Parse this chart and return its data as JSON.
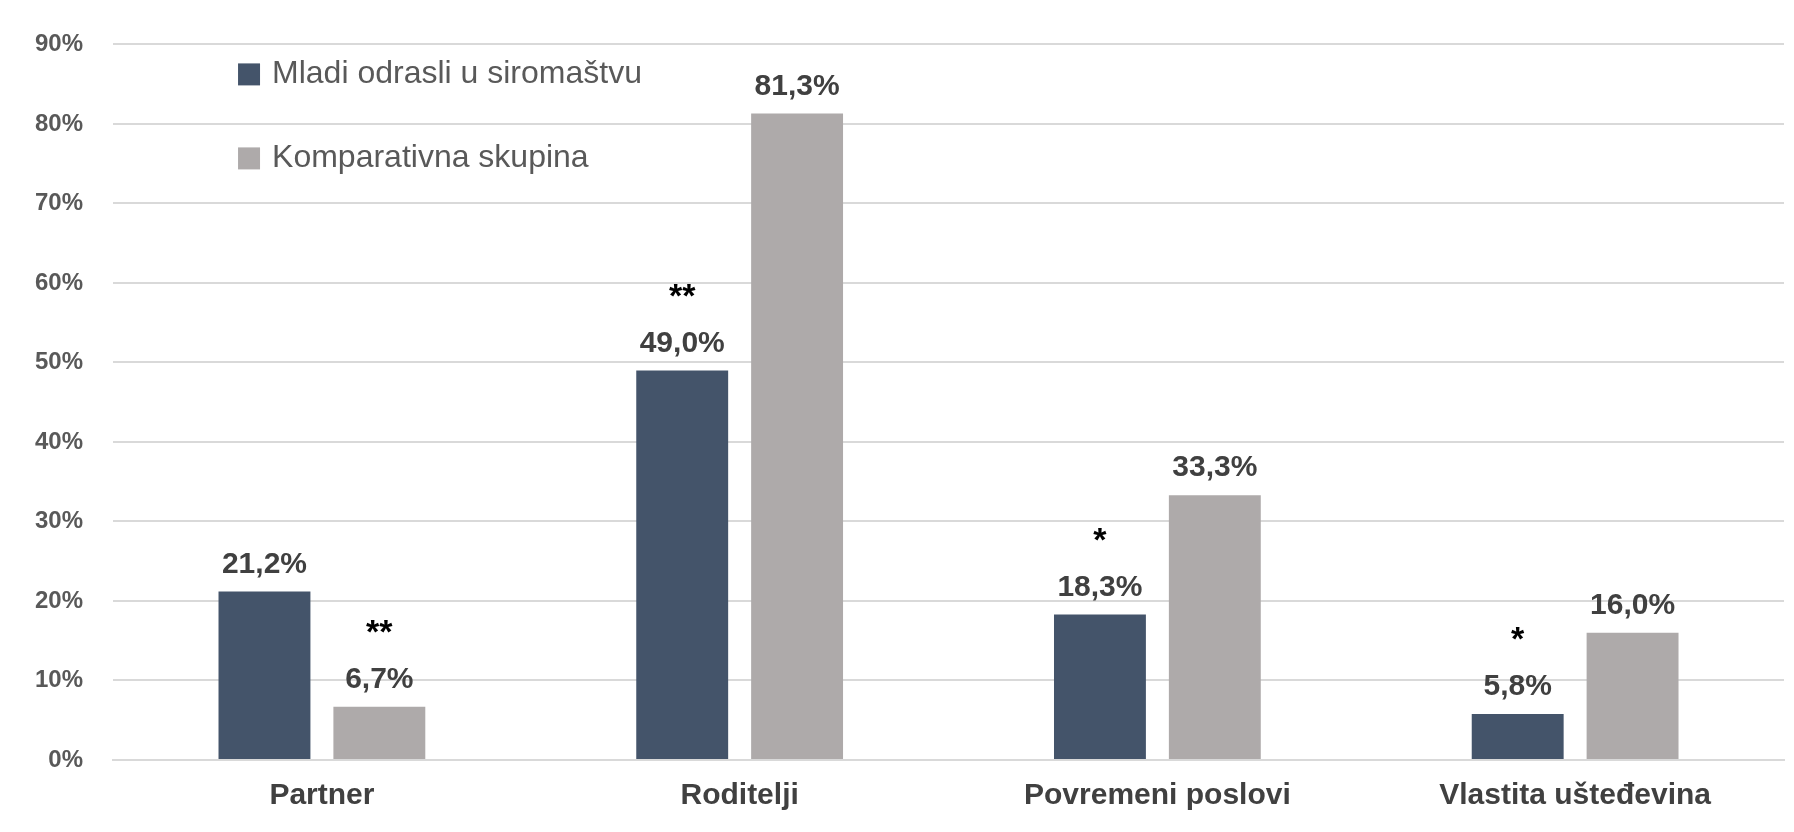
{
  "chart_data": {
    "type": "bar",
    "categories": [
      "Partner",
      "Roditelji",
      "Povremeni poslovi",
      "Vlastita ušteđevina"
    ],
    "series": [
      {
        "name": "Mladi odrasli u siromaštvu",
        "color": "#44546a",
        "values": [
          21.2,
          49.0,
          18.3,
          5.8
        ],
        "value_labels": [
          "21,2%",
          "49,0%",
          "18,3%",
          "5,8%"
        ]
      },
      {
        "name": "Komparativna skupina",
        "color": "#aeaaaa",
        "values": [
          6.7,
          81.3,
          33.3,
          16.0
        ],
        "value_labels": [
          "6,7%",
          "81,3%",
          "33,3%",
          "16,0%"
        ]
      }
    ],
    "ylim": [
      0,
      90
    ],
    "yticks": [
      {
        "value": 0,
        "label": "0%"
      },
      {
        "value": 10,
        "label": "10%"
      },
      {
        "value": 20,
        "label": "20%"
      },
      {
        "value": 30,
        "label": "30%"
      },
      {
        "value": 40,
        "label": "40%"
      },
      {
        "value": 50,
        "label": "50%"
      },
      {
        "value": 60,
        "label": "60%"
      },
      {
        "value": 70,
        "label": "70%"
      },
      {
        "value": 80,
        "label": "80%"
      },
      {
        "value": 90,
        "label": "90%"
      }
    ],
    "grid": "y",
    "legend": "top left",
    "annotations": [
      "**",
      "**",
      "*",
      "*"
    ]
  }
}
